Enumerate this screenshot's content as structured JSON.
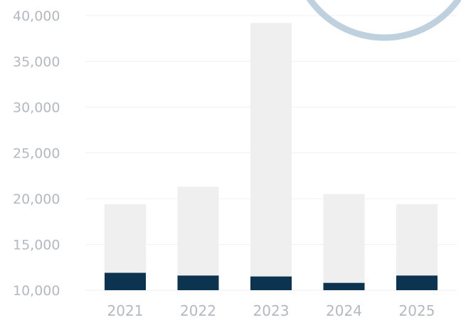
{
  "chart_data": {
    "type": "bar",
    "categories": [
      "2021",
      "2022",
      "2023",
      "2024",
      "2025"
    ],
    "series": [
      {
        "values": [
          19400,
          21300,
          39200,
          20500,
          19400
        ]
      },
      {
        "values": [
          11900,
          11600,
          11500,
          10800,
          11600
        ]
      }
    ],
    "ylim": [
      10000,
      40000
    ],
    "yticks": [
      "10,000",
      "15,000",
      "20,000",
      "25,000",
      "30,000",
      "35,000",
      "40,000"
    ],
    "ytick_values": [
      10000,
      15000,
      20000,
      25000,
      30000,
      35000,
      40000
    ],
    "grid": true,
    "colors": {
      "background_bar": "#efefef",
      "foreground_bar": "#0c3350",
      "grid": "#f1f1f1",
      "tick_text": "#b4b9bf",
      "circle_stroke": "#bfd0df"
    }
  }
}
